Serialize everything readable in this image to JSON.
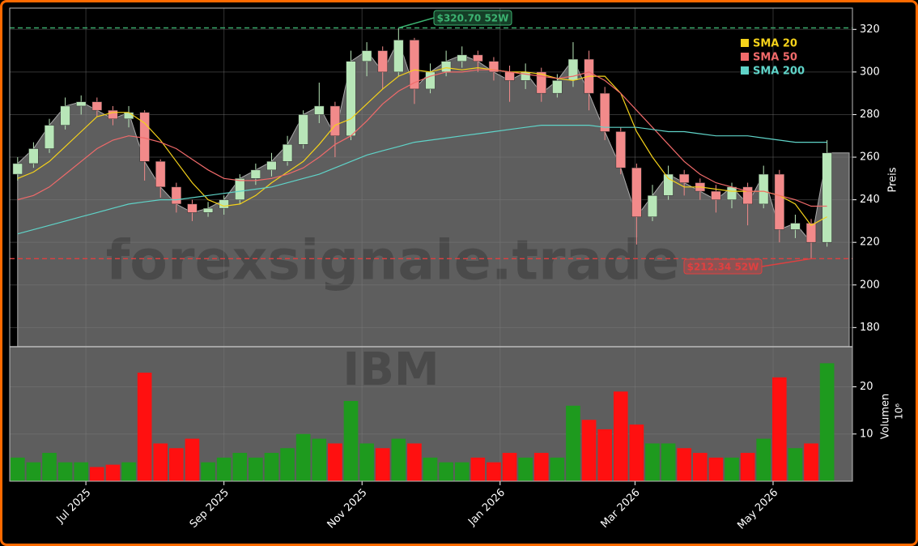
{
  "chart_data": {
    "type": "candlestick",
    "watermark": "forexsignale.trade",
    "symbol": "IBM",
    "y_label": "Preis",
    "volume_label": "Volumen",
    "volume_offset": "10⁶",
    "categories": [
      null,
      null,
      null,
      null,
      null,
      null,
      null,
      null,
      null,
      null,
      null,
      null,
      null,
      null,
      null,
      null,
      null,
      null,
      null,
      null,
      null,
      null,
      null,
      null,
      null,
      null,
      null,
      null,
      null,
      null,
      null,
      null,
      null,
      null,
      null,
      null,
      null,
      null,
      null,
      null,
      null,
      null,
      null,
      null,
      null,
      null,
      null,
      null,
      null,
      null,
      null,
      null
    ],
    "open": [
      252,
      257,
      264,
      275,
      284,
      286,
      282,
      278,
      281,
      258,
      246,
      238,
      234,
      236,
      240,
      250,
      254,
      258,
      266,
      280,
      284,
      270,
      305,
      310,
      300,
      315,
      292,
      300,
      305,
      308,
      305,
      300,
      296,
      300,
      290,
      296,
      306,
      290,
      272,
      255,
      232,
      242,
      252,
      248,
      244,
      240,
      246,
      238,
      252,
      226,
      229,
      220
    ],
    "high": [
      260,
      267,
      278,
      288,
      289,
      288,
      284,
      284,
      282,
      259,
      248,
      240,
      239,
      242,
      252,
      257,
      262,
      270,
      282,
      295,
      286,
      310,
      314,
      312,
      320.7,
      316,
      304,
      310,
      312,
      310,
      307,
      303,
      304,
      302,
      299,
      314,
      310,
      293,
      274,
      257,
      247,
      256,
      254,
      250,
      247,
      248,
      248,
      256,
      254,
      233,
      231,
      268
    ],
    "low": [
      249,
      255,
      262,
      273,
      280,
      279,
      275,
      274,
      249,
      241,
      234,
      230,
      232,
      233,
      238,
      247,
      251,
      256,
      264,
      276,
      260,
      268,
      298,
      292,
      298,
      285,
      290,
      298,
      302,
      300,
      296,
      286,
      292,
      286,
      288,
      293,
      282,
      268,
      252,
      219,
      230,
      240,
      242,
      240,
      234,
      236,
      228,
      236,
      220,
      222,
      212.34,
      218
    ],
    "close": [
      257,
      264,
      275,
      284,
      286,
      282,
      278,
      281,
      258,
      246,
      238,
      234,
      236,
      240,
      250,
      254,
      258,
      266,
      280,
      284,
      270,
      305,
      310,
      300,
      315,
      292,
      300,
      305,
      308,
      305,
      300,
      296,
      300,
      290,
      296,
      306,
      290,
      272,
      255,
      232,
      242,
      252,
      248,
      244,
      240,
      246,
      238,
      252,
      226,
      229,
      220,
      262
    ],
    "volume": [
      5,
      4,
      6,
      4,
      4,
      3,
      3.5,
      4,
      23,
      8,
      7,
      9,
      4,
      5,
      6,
      5,
      6,
      7,
      10,
      9,
      8,
      17,
      8,
      7,
      9,
      8,
      5,
      4,
      4,
      5,
      4,
      6,
      5,
      6,
      5,
      16,
      13,
      11,
      19,
      12,
      8,
      8,
      7,
      6,
      5,
      5,
      6,
      9,
      22,
      7,
      8,
      25
    ],
    "up_color": "#b8e6b8",
    "down_color": "#f28a8a",
    "volume_up_color": "#1e9a1e",
    "volume_down_color": "#ff1010",
    "area_color": "#5e5e5e",
    "series": [
      {
        "name": "SMA 20",
        "color": "#f5d21a",
        "values": [
          250,
          253,
          258,
          265,
          272,
          279,
          281,
          281,
          276,
          268,
          258,
          248,
          240,
          237,
          238,
          242,
          248,
          253,
          258,
          266,
          275,
          278,
          285,
          292,
          298,
          301,
          300,
          302,
          301,
          302,
          301,
          300,
          300,
          299,
          297,
          296,
          298,
          298,
          290,
          272,
          260,
          250,
          246,
          246,
          245,
          244,
          244,
          244,
          242,
          238,
          228,
          232
        ]
      },
      {
        "name": "SMA 50",
        "color": "#f06a6a",
        "values": [
          240,
          242,
          246,
          252,
          258,
          264,
          268,
          270,
          269,
          267,
          264,
          259,
          254,
          250,
          249,
          249,
          250,
          252,
          255,
          260,
          266,
          270,
          277,
          285,
          291,
          295,
          298,
          300,
          300,
          301,
          301,
          300,
          299,
          298,
          297,
          298,
          300,
          296,
          290,
          282,
          274,
          266,
          258,
          252,
          248,
          246,
          244,
          244,
          242,
          240,
          237,
          237
        ]
      },
      {
        "name": "SMA 200",
        "color": "#5fd3c8",
        "values": [
          224,
          226,
          228,
          230,
          232,
          234,
          236,
          238,
          239,
          240,
          240,
          241,
          242,
          243,
          244,
          245,
          246,
          248,
          250,
          252,
          255,
          258,
          261,
          263,
          265,
          267,
          268,
          269,
          270,
          271,
          272,
          273,
          274,
          275,
          275,
          275,
          275,
          274,
          274,
          274,
          273,
          272,
          272,
          271,
          270,
          270,
          270,
          269,
          268,
          267,
          267,
          267
        ]
      }
    ],
    "high_52w": {
      "value": 320.7,
      "label": "$320.70 52W",
      "color": "#3cb371"
    },
    "low_52w": {
      "value": 212.34,
      "label": "$212.34 52W",
      "color": "#e04040"
    },
    "xlim": [
      -0.5,
      52.6
    ],
    "xticks": [
      {
        "value": 4.3,
        "label": "Jul 2025"
      },
      {
        "value": 13,
        "label": "Sep 2025"
      },
      {
        "value": 21.7,
        "label": "Nov 2025"
      },
      {
        "value": 30.4,
        "label": "Jan 2026"
      },
      {
        "value": 38.9,
        "label": "Mar 2026"
      },
      {
        "value": 47.6,
        "label": "May 2026"
      }
    ],
    "ylim": [
      171,
      330
    ],
    "yticks": [
      180,
      200,
      220,
      240,
      260,
      280,
      300,
      320
    ],
    "volume_ylim": [
      0,
      28.5
    ],
    "volume_yticks": [
      10,
      20
    ],
    "grid": true
  }
}
